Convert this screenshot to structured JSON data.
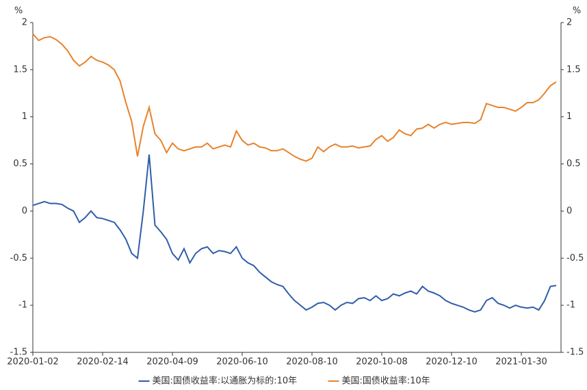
{
  "chart_data": {
    "type": "line",
    "ylabel": "%",
    "y2label": "%",
    "categories": [
      "2020-01-02",
      null,
      null,
      null,
      null,
      null,
      null,
      null,
      null,
      null,
      null,
      null,
      "2020-02-14",
      null,
      null,
      null,
      null,
      null,
      null,
      null,
      null,
      null,
      null,
      null,
      "2020-04-09",
      null,
      null,
      null,
      null,
      null,
      null,
      null,
      null,
      null,
      null,
      null,
      "2020-06-10",
      null,
      null,
      null,
      null,
      null,
      null,
      null,
      null,
      null,
      null,
      null,
      "2020-08-10",
      null,
      null,
      null,
      null,
      null,
      null,
      null,
      null,
      null,
      null,
      null,
      "2020-10-08",
      null,
      null,
      null,
      null,
      null,
      null,
      null,
      null,
      null,
      null,
      null,
      "2020-12-10",
      null,
      null,
      null,
      null,
      null,
      null,
      null,
      null,
      null,
      null,
      null,
      "2021-01-30",
      null,
      null,
      null,
      null,
      null,
      null
    ],
    "series": [
      {
        "name": "美国:国债收益率:以通胀为标的:10年",
        "color": "#2f5da8",
        "values": [
          0.06,
          0.08,
          0.1,
          0.08,
          0.08,
          0.07,
          0.03,
          0.0,
          -0.12,
          -0.07,
          0.0,
          -0.07,
          -0.08,
          -0.1,
          -0.12,
          -0.2,
          -0.3,
          -0.45,
          -0.5,
          0.0,
          0.6,
          -0.15,
          -0.22,
          -0.3,
          -0.45,
          -0.52,
          -0.4,
          -0.55,
          -0.45,
          -0.4,
          -0.38,
          -0.45,
          -0.42,
          -0.43,
          -0.45,
          -0.38,
          -0.5,
          -0.55,
          -0.58,
          -0.65,
          -0.7,
          -0.75,
          -0.78,
          -0.8,
          -0.88,
          -0.95,
          -1.0,
          -1.05,
          -1.02,
          -0.98,
          -0.97,
          -1.0,
          -1.05,
          -1.0,
          -0.97,
          -0.98,
          -0.93,
          -0.92,
          -0.95,
          -0.9,
          -0.95,
          -0.93,
          -0.88,
          -0.9,
          -0.87,
          -0.85,
          -0.88,
          -0.8,
          -0.85,
          -0.87,
          -0.9,
          -0.95,
          -0.98,
          -1.0,
          -1.02,
          -1.05,
          -1.07,
          -1.05,
          -0.95,
          -0.92,
          -0.98,
          -1.0,
          -1.03,
          -1.0,
          -1.02,
          -1.03,
          -1.02,
          -1.05,
          -0.95,
          -0.8,
          -0.79
        ]
      },
      {
        "name": "美国:国债收益率:10年",
        "color": "#e8822a",
        "values": [
          1.88,
          1.81,
          1.84,
          1.85,
          1.82,
          1.77,
          1.7,
          1.6,
          1.54,
          1.58,
          1.64,
          1.6,
          1.58,
          1.55,
          1.5,
          1.38,
          1.15,
          0.95,
          0.58,
          0.9,
          1.1,
          0.82,
          0.75,
          0.62,
          0.72,
          0.66,
          0.64,
          0.66,
          0.68,
          0.68,
          0.72,
          0.66,
          0.68,
          0.7,
          0.68,
          0.85,
          0.75,
          0.7,
          0.72,
          0.68,
          0.67,
          0.64,
          0.64,
          0.66,
          0.62,
          0.58,
          0.55,
          0.53,
          0.56,
          0.68,
          0.63,
          0.68,
          0.71,
          0.68,
          0.68,
          0.69,
          0.67,
          0.68,
          0.69,
          0.76,
          0.8,
          0.74,
          0.78,
          0.86,
          0.82,
          0.8,
          0.87,
          0.88,
          0.92,
          0.88,
          0.92,
          0.94,
          0.92,
          0.93,
          0.94,
          0.94,
          0.93,
          0.97,
          1.14,
          1.12,
          1.1,
          1.1,
          1.08,
          1.06,
          1.1,
          1.15,
          1.15,
          1.18,
          1.25,
          1.33,
          1.37
        ]
      }
    ],
    "ylim": [
      -1.5,
      2
    ],
    "yticks": [
      2,
      1.5,
      1,
      0.5,
      0,
      -0.5,
      -1,
      -1.5
    ],
    "y2lim": [
      -1.5,
      2
    ],
    "y2ticks": [
      2,
      1.5,
      1,
      0.5,
      0,
      -0.5,
      -1,
      -1.5
    ],
    "grid": false,
    "legend": "bottom"
  }
}
